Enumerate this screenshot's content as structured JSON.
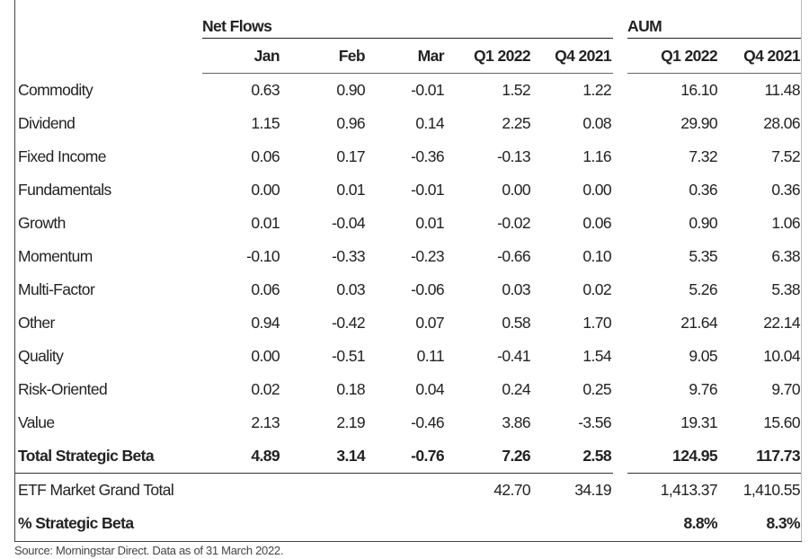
{
  "groups": {
    "net_flows": "Net Flows",
    "aum": "AUM"
  },
  "columns": {
    "jan": "Jan",
    "feb": "Feb",
    "mar": "Mar",
    "nf_q1": "Q1 2022",
    "nf_q4": "Q4 2021",
    "aum_q1": "Q1 2022",
    "aum_q4": "Q4 2021"
  },
  "rows": [
    {
      "label": "Commodity",
      "jan": "0.63",
      "feb": "0.90",
      "mar": "-0.01",
      "nf_q1": "1.52",
      "nf_q4": "1.22",
      "aum_q1": "16.10",
      "aum_q4": "11.48"
    },
    {
      "label": "Dividend",
      "jan": "1.15",
      "feb": "0.96",
      "mar": "0.14",
      "nf_q1": "2.25",
      "nf_q4": "0.08",
      "aum_q1": "29.90",
      "aum_q4": "28.06"
    },
    {
      "label": "Fixed Income",
      "jan": "0.06",
      "feb": "0.17",
      "mar": "-0.36",
      "nf_q1": "-0.13",
      "nf_q4": "1.16",
      "aum_q1": "7.32",
      "aum_q4": "7.52"
    },
    {
      "label": "Fundamentals",
      "jan": "0.00",
      "feb": "0.01",
      "mar": "-0.01",
      "nf_q1": "0.00",
      "nf_q4": "0.00",
      "aum_q1": "0.36",
      "aum_q4": "0.36"
    },
    {
      "label": "Growth",
      "jan": "0.01",
      "feb": "-0.04",
      "mar": "0.01",
      "nf_q1": "-0.02",
      "nf_q4": "0.06",
      "aum_q1": "0.90",
      "aum_q4": "1.06"
    },
    {
      "label": "Momentum",
      "jan": "-0.10",
      "feb": "-0.33",
      "mar": "-0.23",
      "nf_q1": "-0.66",
      "nf_q4": "0.10",
      "aum_q1": "5.35",
      "aum_q4": "6.38"
    },
    {
      "label": "Multi-Factor",
      "jan": "0.06",
      "feb": "0.03",
      "mar": "-0.06",
      "nf_q1": "0.03",
      "nf_q4": "0.02",
      "aum_q1": "5.26",
      "aum_q4": "5.38"
    },
    {
      "label": "Other",
      "jan": "0.94",
      "feb": "-0.42",
      "mar": "0.07",
      "nf_q1": "0.58",
      "nf_q4": "1.70",
      "aum_q1": "21.64",
      "aum_q4": "22.14"
    },
    {
      "label": "Quality",
      "jan": "0.00",
      "feb": "-0.51",
      "mar": "0.11",
      "nf_q1": "-0.41",
      "nf_q4": "1.54",
      "aum_q1": "9.05",
      "aum_q4": "10.04"
    },
    {
      "label": "Risk-Oriented",
      "jan": "0.02",
      "feb": "0.18",
      "mar": "0.04",
      "nf_q1": "0.24",
      "nf_q4": "0.25",
      "aum_q1": "9.76",
      "aum_q4": "9.70"
    },
    {
      "label": "Value",
      "jan": "2.13",
      "feb": "2.19",
      "mar": "-0.46",
      "nf_q1": "3.86",
      "nf_q4": "-3.56",
      "aum_q1": "19.31",
      "aum_q4": "15.60"
    }
  ],
  "total": {
    "label": "Total Strategic Beta",
    "jan": "4.89",
    "feb": "3.14",
    "mar": "-0.76",
    "nf_q1": "7.26",
    "nf_q4": "2.58",
    "aum_q1": "124.95",
    "aum_q4": "117.73"
  },
  "grand_total": {
    "label": "ETF Market Grand Total",
    "nf_q1": "42.70",
    "nf_q4": "34.19",
    "aum_q1": "1,413.37",
    "aum_q4": "1,410.55"
  },
  "pct_strategic": {
    "label": "% Strategic Beta",
    "aum_q1": "8.8%",
    "aum_q4": "8.3%"
  },
  "source": "Source: Morningstar Direct. Data as of 31 March 2022."
}
